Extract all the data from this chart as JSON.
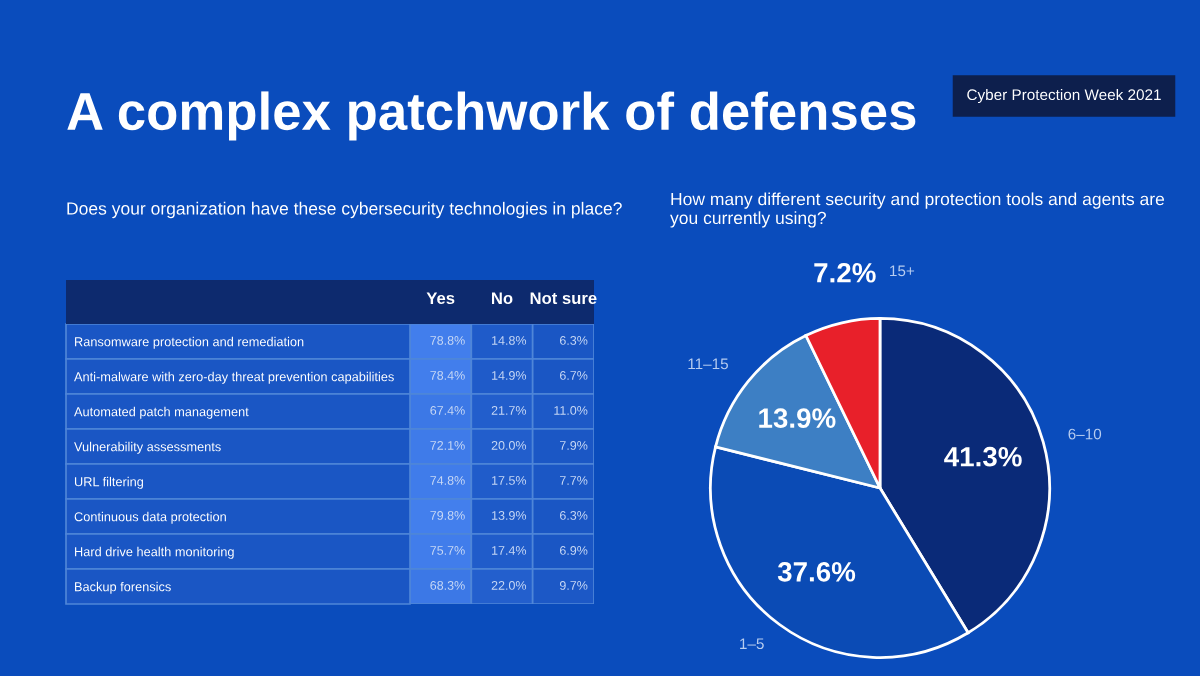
{
  "chart_data": [
    {
      "type": "heatmap",
      "title": "A complex patchwork of defenses",
      "subtitle": "Does your organization have these cybersecurity technologies in place?",
      "color": "#1a56c4",
      "categories": [
        "Yes",
        "No",
        "Not sure"
      ],
      "y_categories": [
        "Ransomware protection and remediation",
        "Anti-malware with zero-day threat prevention capabilities",
        "Automated patch management",
        "Vulnerability assessments",
        "URL filtering",
        "Continuous data protection",
        "Hard drive health monitoring",
        "Backup forensics"
      ],
      "cells": [
        [
          78.8,
          14.8,
          6.3
        ],
        [
          78.4,
          14.9,
          6.7
        ],
        [
          67.4,
          21.7,
          11.0
        ],
        [
          72.1,
          20.0,
          7.9
        ],
        [
          74.8,
          17.5,
          7.7
        ],
        [
          79.8,
          13.9,
          6.3
        ],
        [
          75.7,
          17.4,
          6.9
        ],
        [
          68.3,
          22.0,
          9.7
        ]
      ],
      "cell_labels": [
        [
          "78.8%",
          "14.8%",
          "6.3%"
        ],
        [
          "78.4%",
          "14.9%",
          "6.7%"
        ],
        [
          "67.4%",
          "21.7%",
          "11.0%"
        ],
        [
          "72.1%",
          "20.0%",
          "7.9%"
        ],
        [
          "74.8%",
          "17.5%",
          "7.7%"
        ],
        [
          "79.8%",
          "13.9%",
          "6.3%"
        ],
        [
          "75.7%",
          "17.4%",
          "6.9%"
        ],
        [
          "68.3%",
          "22.0%",
          "9.7%"
        ]
      ]
    },
    {
      "type": "pie",
      "subtitle": "How many different security and protection tools and agents are you currently using?",
      "categories": [
        "6–10",
        "1–5",
        "11–15",
        "15+"
      ],
      "values": [
        41.3,
        37.6,
        13.9,
        7.2
      ],
      "colors": [
        "#0a2a78",
        "#0b4bb5",
        "#3d7fc4",
        "#e8202a"
      ],
      "value_labels": [
        "41.3%",
        "37.6%",
        "13.9%",
        "7.2%"
      ],
      "annotations": [
        "Cyber Protection Week 2021"
      ]
    }
  ]
}
